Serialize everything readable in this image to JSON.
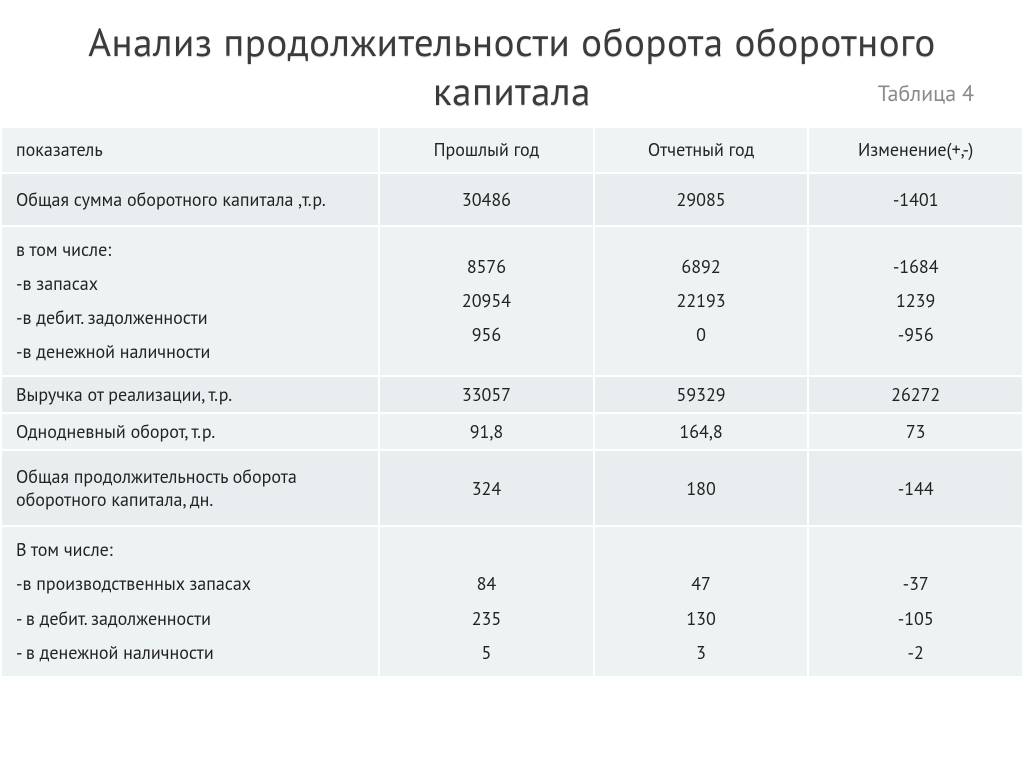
{
  "title": "Анализ продолжительности оборота оборотного капитала",
  "table_label": "Таблица 4",
  "columns": [
    "показатель",
    "Прошлый год",
    "Отчетный год",
    "Изменение(+,-)"
  ],
  "rows": [
    {
      "indicator": "Общая сумма оборотного капитала ,т.р.",
      "prev": "30486",
      "curr": "29085",
      "delta": "-1401",
      "tall": true
    },
    {
      "indicator": "в том числе:\n-в запасах\n-в дебит. задолженности\n-в денежной наличности",
      "prev": "8576\n20954\n956",
      "curr": "6892\n22193\n0",
      "delta": "-1684\n1239\n-956",
      "multi": true
    },
    {
      "indicator": "Выручка от реализации, т.р.",
      "prev": "33057",
      "curr": "59329",
      "delta": "26272"
    },
    {
      "indicator": "Однодневный оборот, т.р.",
      "prev": "91,8",
      "curr": "164,8",
      "delta": "73"
    },
    {
      "indicator": "Общая продолжительность оборота оборотного капитала, дн.",
      "prev": "324",
      "curr": "180",
      "delta": "-144",
      "tall": true
    },
    {
      "indicator": "В том числе:\n-в производственных запасах\n- в дебит. задолженности\n- в денежной наличности",
      "prev": "\n84\n235\n5",
      "curr": "\n47\n130\n3",
      "delta": "\n-37\n-105\n-2",
      "multi": true
    }
  ],
  "styling": {
    "title_color": "#3b3b3b",
    "title_fontsize": 39,
    "table_label_color": "#8a8a8a",
    "header_bg": "#eef3f4",
    "row_bg_odd": "#e8eef0",
    "row_bg_even": "#edf2f3",
    "border_color": "#ffffff",
    "font": "PT Sans / Segoe UI",
    "cell_fontsize": 18
  }
}
